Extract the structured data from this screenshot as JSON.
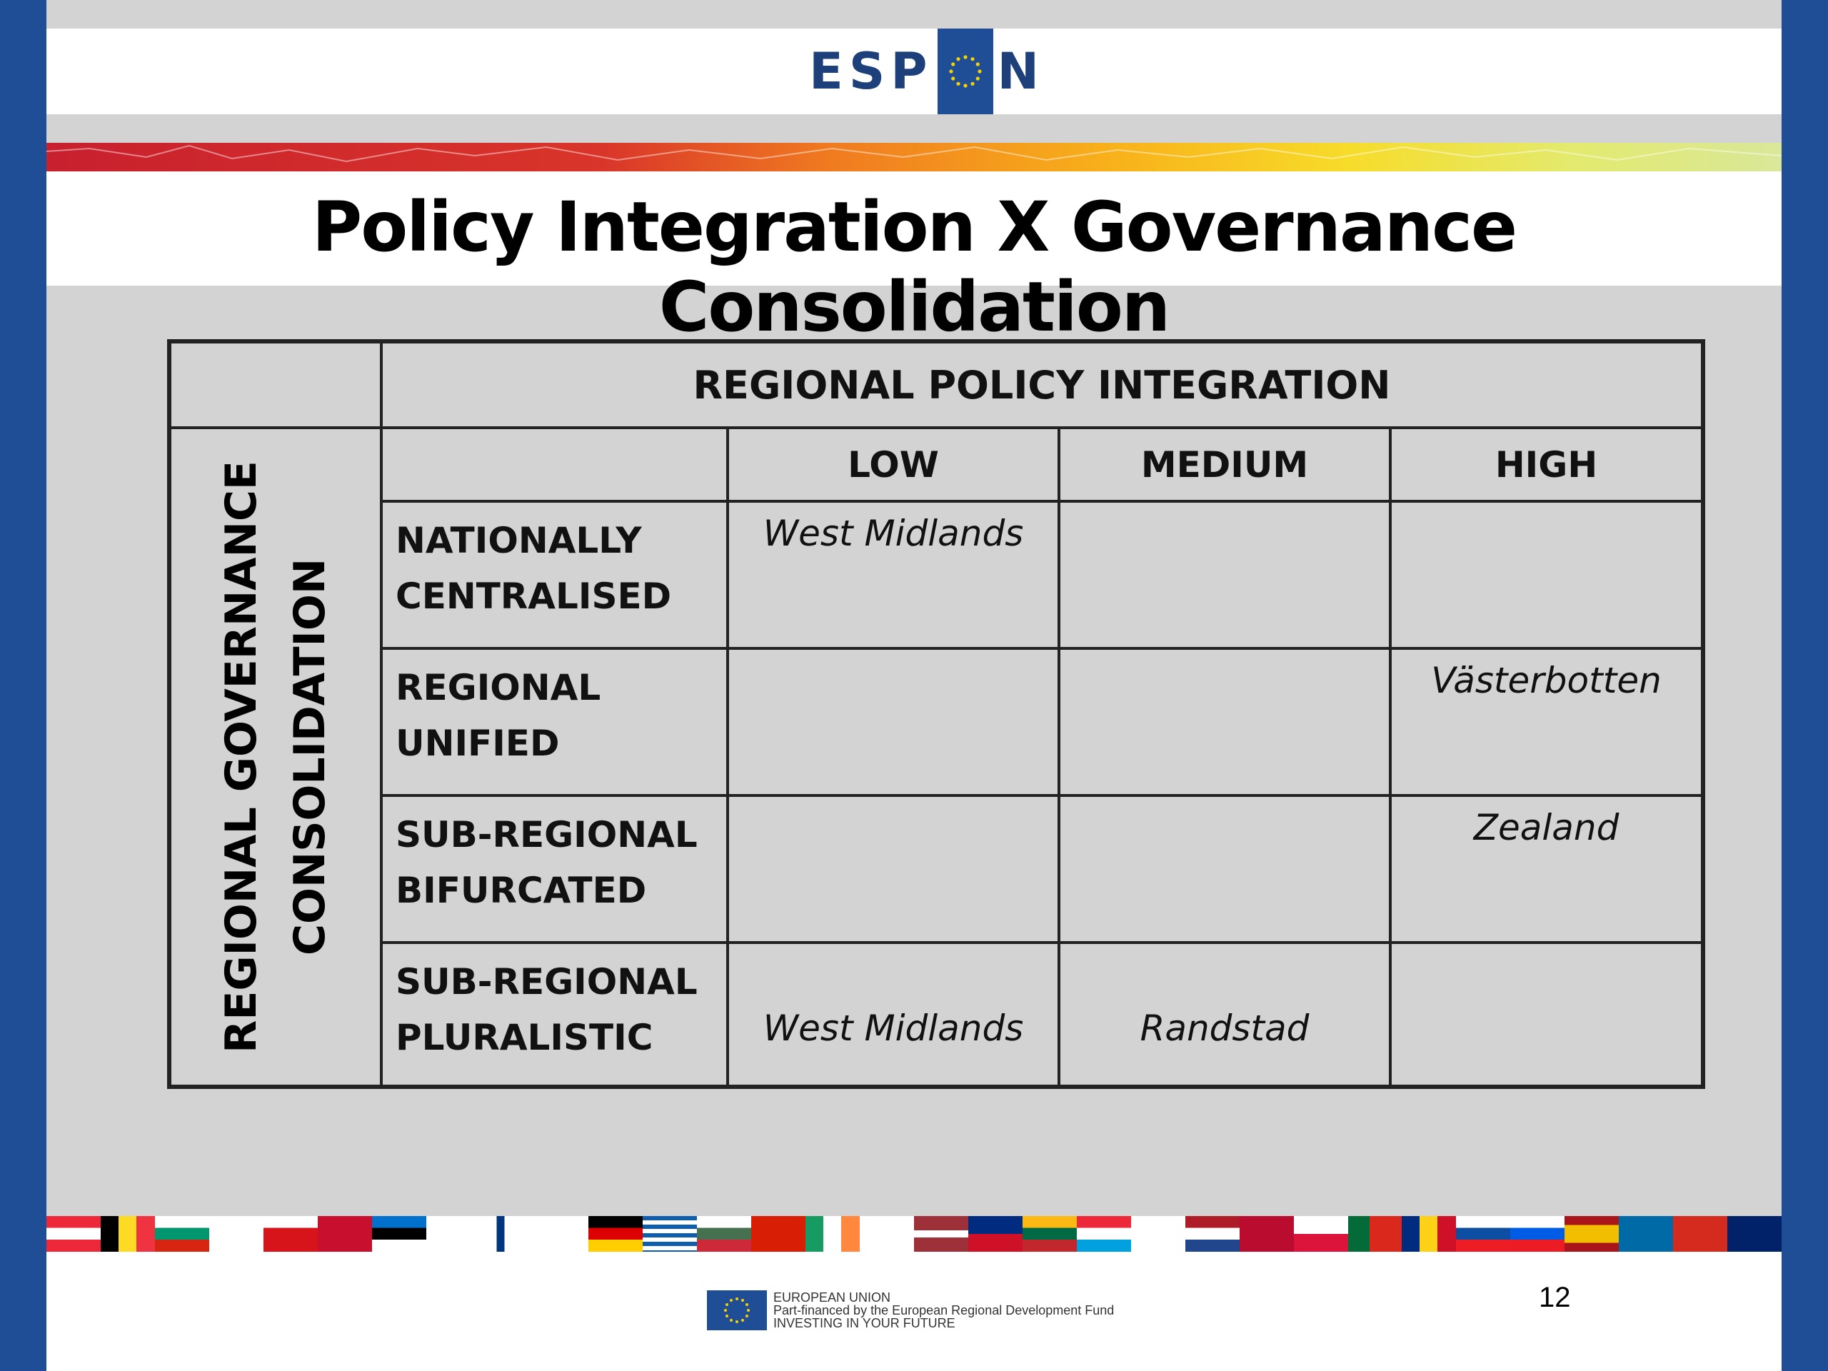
{
  "header": {
    "logo_left": "ESP",
    "logo_right": "N",
    "title": "Policy Integration X Governance Consolidation"
  },
  "table": {
    "column_group_header": "REGIONAL POLICY INTEGRATION",
    "row_group_header_line1": "REGIONAL GOVERNANCE",
    "row_group_header_line2": "CONSOLIDATION",
    "columns": [
      "LOW",
      "MEDIUM",
      "HIGH"
    ],
    "rows": [
      {
        "label_line1": "NATIONALLY",
        "label_line2": "CENTRALISED",
        "cells": [
          "West Midlands",
          "",
          ""
        ]
      },
      {
        "label_line1": "REGIONAL",
        "label_line2": "UNIFIED",
        "cells": [
          "",
          "",
          "Västerbotten"
        ]
      },
      {
        "label_line1": "SUB-REGIONAL",
        "label_line2": "BIFURCATED",
        "cells": [
          "",
          "",
          "Zealand"
        ]
      },
      {
        "label_line1": "SUB-REGIONAL",
        "label_line2": "PLURALISTIC",
        "cells": [
          "West Midlands",
          "Randstad",
          ""
        ]
      }
    ]
  },
  "footer": {
    "eu_line1": "EUROPEAN UNION",
    "eu_line2": "Part-financed by the European Regional Development Fund",
    "eu_line3": "INVESTING IN YOUR FUTURE",
    "page_number": "12"
  },
  "colors": {
    "side_blue": "#1f4e97",
    "slide_grey": "#d3d3d3",
    "border": "#222222"
  }
}
